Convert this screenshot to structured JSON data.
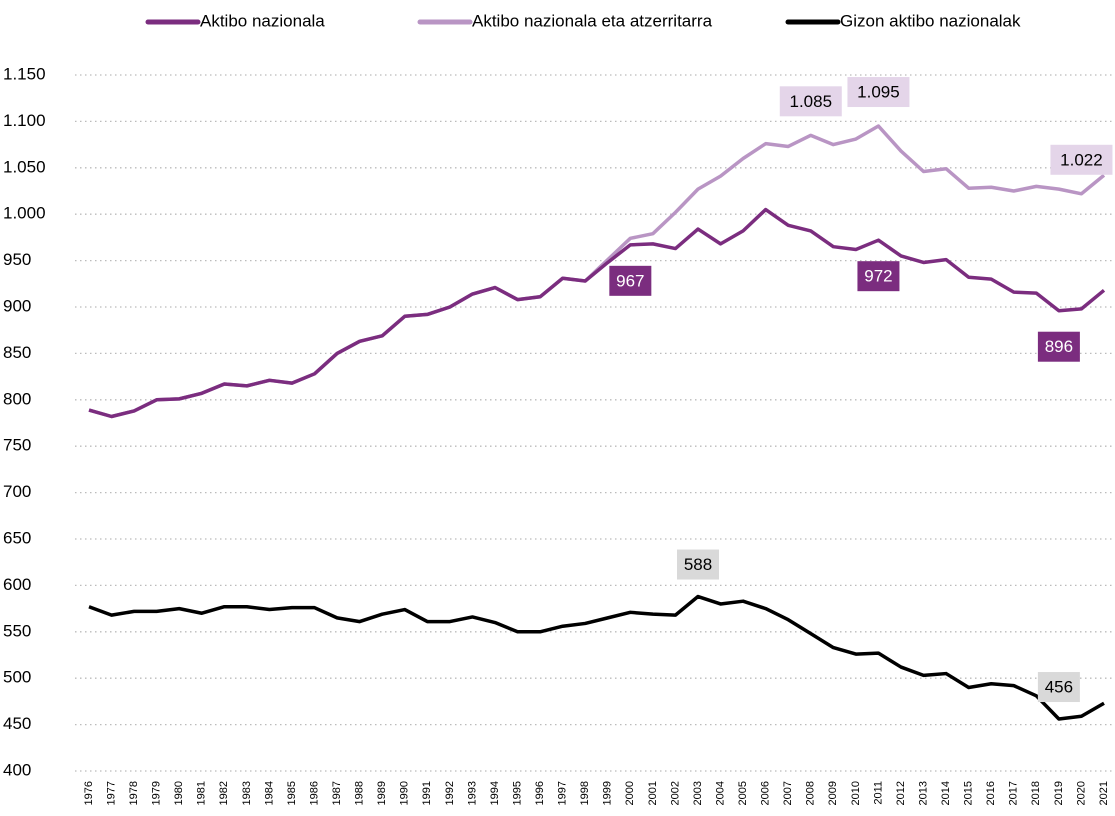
{
  "chart_data": {
    "type": "line",
    "categories": [
      "1976",
      "1977",
      "1978",
      "1979",
      "1980",
      "1981",
      "1982",
      "1983",
      "1984",
      "1985",
      "1986",
      "1987",
      "1988",
      "1989",
      "1990",
      "1991",
      "1992",
      "1993",
      "1994",
      "1995",
      "1996",
      "1997",
      "1998",
      "1999",
      "2000",
      "2001",
      "2002",
      "2003",
      "2004",
      "2005",
      "2006",
      "2007",
      "2008",
      "2009",
      "2010",
      "2011",
      "2012",
      "2013",
      "2014",
      "2015",
      "2016",
      "2017",
      "2018",
      "2019",
      "2020",
      "2021"
    ],
    "series": [
      {
        "name": "Aktibo nazionala",
        "color": "#7b2d7f",
        "values": [
          789,
          782,
          788,
          800,
          801,
          807,
          817,
          815,
          821,
          818,
          828,
          850,
          863,
          869,
          890,
          892,
          900,
          914,
          921,
          908,
          911,
          931,
          928,
          948,
          967,
          968,
          963,
          984,
          968,
          982,
          1005,
          988,
          982,
          965,
          962,
          972,
          955,
          948,
          951,
          932,
          930,
          916,
          915,
          896,
          898,
          918
        ],
        "value_labels": [
          null,
          null,
          null,
          null,
          null,
          null,
          null,
          null,
          null,
          null,
          null,
          null,
          null,
          null,
          null,
          null,
          null,
          null,
          null,
          null,
          null,
          null,
          null,
          null,
          "967",
          null,
          null,
          null,
          null,
          null,
          null,
          null,
          null,
          null,
          null,
          "972",
          null,
          null,
          null,
          null,
          null,
          null,
          null,
          "896",
          null,
          null
        ]
      },
      {
        "name": "Aktibo nazionala eta atzerritarra",
        "color": "#b995c4",
        "values": [
          789,
          782,
          788,
          800,
          801,
          807,
          817,
          815,
          821,
          818,
          828,
          850,
          863,
          869,
          890,
          892,
          900,
          914,
          921,
          908,
          911,
          931,
          928,
          951,
          974,
          979,
          1002,
          1027,
          1041,
          1060,
          1076,
          1073,
          1085,
          1075,
          1081,
          1095,
          1068,
          1046,
          1049,
          1028,
          1029,
          1025,
          1030,
          1027,
          1022,
          1042
        ],
        "value_labels": [
          null,
          null,
          null,
          null,
          null,
          null,
          null,
          null,
          null,
          null,
          null,
          null,
          null,
          null,
          null,
          null,
          null,
          null,
          null,
          null,
          null,
          null,
          null,
          null,
          null,
          null,
          null,
          null,
          null,
          null,
          null,
          null,
          "1.085",
          null,
          null,
          "1.095",
          null,
          null,
          null,
          null,
          null,
          null,
          null,
          null,
          "1.022",
          null
        ]
      },
      {
        "name": "Gizon aktibo nazionalak",
        "color": "#000000",
        "values": [
          577,
          568,
          572,
          572,
          575,
          570,
          577,
          577,
          574,
          576,
          576,
          565,
          561,
          569,
          574,
          561,
          561,
          566,
          560,
          550,
          550,
          556,
          559,
          565,
          571,
          569,
          568,
          588,
          580,
          583,
          575,
          563,
          548,
          533,
          526,
          527,
          512,
          503,
          505,
          490,
          494,
          492,
          481,
          456,
          459,
          473
        ],
        "value_labels": [
          null,
          null,
          null,
          null,
          null,
          null,
          null,
          null,
          null,
          null,
          null,
          null,
          null,
          null,
          null,
          null,
          null,
          null,
          null,
          null,
          null,
          null,
          null,
          null,
          null,
          null,
          null,
          "588",
          null,
          null,
          null,
          null,
          null,
          null,
          null,
          null,
          null,
          null,
          null,
          null,
          null,
          null,
          null,
          "456",
          null,
          null
        ]
      }
    ],
    "ylim": [
      400,
      1150
    ],
    "yticks": [
      400,
      450,
      500,
      550,
      600,
      650,
      700,
      750,
      800,
      850,
      900,
      950,
      {
        "value": 1000,
        "label": "1.000"
      },
      {
        "value": 1050,
        "label": "1.050"
      },
      {
        "value": 1100,
        "label": "1.100"
      },
      {
        "value": 1150,
        "label": "1.150"
      }
    ],
    "grid": true,
    "legend": "top"
  }
}
